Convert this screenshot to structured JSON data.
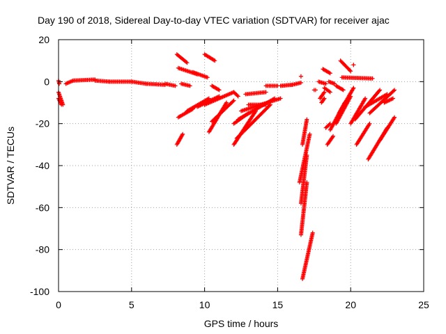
{
  "chart_data": {
    "type": "scatter",
    "title": "Day 190 of 2018, Sidereal Day-to-day VTEC variation (SDTVAR) for receiver ajac",
    "xlabel": "GPS time / hours",
    "ylabel": "SDTVAR / TECUs",
    "xlim": [
      0,
      25
    ],
    "ylim": [
      -100,
      20
    ],
    "xticks": [
      0,
      5,
      10,
      15,
      20,
      25
    ],
    "yticks": [
      -100,
      -80,
      -60,
      -40,
      -20,
      0,
      20
    ],
    "grid": true,
    "marker": "+",
    "color": "#ff0000",
    "segments": [
      {
        "x0": 0.0,
        "y0": 0.5,
        "x1": 0.05,
        "y1": -1
      },
      {
        "x0": 0.0,
        "y0": -5,
        "x1": 0.3,
        "y1": -11
      },
      {
        "x0": 0.0,
        "y0": -8,
        "x1": 0.2,
        "y1": -11
      },
      {
        "x0": 0.5,
        "y0": -1,
        "x1": 1.0,
        "y1": 0.5
      },
      {
        "x0": 1.0,
        "y0": 0.5,
        "x1": 2.5,
        "y1": 1.0
      },
      {
        "x0": 2.5,
        "y0": 0.5,
        "x1": 3.5,
        "y1": 0.0
      },
      {
        "x0": 3.5,
        "y0": 0.0,
        "x1": 5.0,
        "y1": 0.0
      },
      {
        "x0": 5.0,
        "y0": 0.0,
        "x1": 6.0,
        "y1": -1.0
      },
      {
        "x0": 6.0,
        "y0": -1.0,
        "x1": 7.3,
        "y1": -1.5
      },
      {
        "x0": 7.3,
        "y0": -1.0,
        "x1": 8.0,
        "y1": -2.0
      },
      {
        "x0": 8.1,
        "y0": 13,
        "x1": 8.8,
        "y1": 9
      },
      {
        "x0": 8.2,
        "y0": 6.5,
        "x1": 9.5,
        "y1": 3.5
      },
      {
        "x0": 9.2,
        "y0": 4.5,
        "x1": 10.2,
        "y1": 2
      },
      {
        "x0": 8.4,
        "y0": -1,
        "x1": 9.0,
        "y1": -2
      },
      {
        "x0": 8.1,
        "y0": -30,
        "x1": 8.5,
        "y1": -25
      },
      {
        "x0": 8.2,
        "y0": -17,
        "x1": 9.2,
        "y1": -13
      },
      {
        "x0": 8.8,
        "y0": -14,
        "x1": 10.3,
        "y1": -8
      },
      {
        "x0": 9.5,
        "y0": -12,
        "x1": 11.0,
        "y1": -7
      },
      {
        "x0": 10.0,
        "y0": -11,
        "x1": 12.0,
        "y1": -5
      },
      {
        "x0": 10.3,
        "y0": -24,
        "x1": 11.5,
        "y1": -10
      },
      {
        "x0": 10.5,
        "y0": -19,
        "x1": 12.0,
        "y1": -9
      },
      {
        "x0": 10.0,
        "y0": 13,
        "x1": 10.7,
        "y1": 10
      },
      {
        "x0": 10.5,
        "y0": -2,
        "x1": 11.0,
        "y1": -4
      },
      {
        "x0": 12.0,
        "y0": -30,
        "x1": 13.5,
        "y1": -14
      },
      {
        "x0": 12.2,
        "y0": -27,
        "x1": 14.5,
        "y1": -11
      },
      {
        "x0": 12.0,
        "y0": -20,
        "x1": 13.0,
        "y1": -15
      },
      {
        "x0": 12.3,
        "y0": -18,
        "x1": 14.8,
        "y1": -8
      },
      {
        "x0": 12.5,
        "y0": -14,
        "x1": 15.2,
        "y1": -8
      },
      {
        "x0": 12.0,
        "y0": -5,
        "x1": 12.3,
        "y1": -7
      },
      {
        "x0": 13.0,
        "y0": -11,
        "x1": 14.2,
        "y1": -11
      },
      {
        "x0": 12.8,
        "y0": -6,
        "x1": 14.2,
        "y1": -5
      },
      {
        "x0": 14.2,
        "y0": -2,
        "x1": 15.0,
        "y1": -2
      },
      {
        "x0": 15.2,
        "y0": -2,
        "x1": 16.0,
        "y1": -1.5
      },
      {
        "x0": 16.0,
        "y0": -1.5,
        "x1": 16.6,
        "y1": -0.5
      },
      {
        "x0": 16.6,
        "y0": 2.5,
        "x1": 16.6,
        "y1": 2.5
      },
      {
        "x0": 16.5,
        "y0": -48,
        "x1": 17.2,
        "y1": -25
      },
      {
        "x0": 16.6,
        "y0": -58,
        "x1": 17.0,
        "y1": -35
      },
      {
        "x0": 16.6,
        "y0": -73,
        "x1": 17.0,
        "y1": -48
      },
      {
        "x0": 16.7,
        "y0": -94,
        "x1": 17.4,
        "y1": -72
      },
      {
        "x0": 16.7,
        "y0": -30,
        "x1": 17.0,
        "y1": -18
      },
      {
        "x0": 17.5,
        "y0": -4,
        "x1": 17.6,
        "y1": -4
      },
      {
        "x0": 17.8,
        "y0": 0,
        "x1": 18.3,
        "y1": -1
      },
      {
        "x0": 17.9,
        "y0": -8,
        "x1": 18.2,
        "y1": -5
      },
      {
        "x0": 18.0,
        "y0": -10,
        "x1": 18.2,
        "y1": -8
      },
      {
        "x0": 18.1,
        "y0": 6,
        "x1": 18.6,
        "y1": 4
      },
      {
        "x0": 18.3,
        "y0": -22,
        "x1": 18.6,
        "y1": -20
      },
      {
        "x0": 18.2,
        "y0": -3,
        "x1": 18.6,
        "y1": -5
      },
      {
        "x0": 18.5,
        "y0": 0,
        "x1": 18.9,
        "y1": -1
      },
      {
        "x0": 18.4,
        "y0": -30,
        "x1": 18.8,
        "y1": -26
      },
      {
        "x0": 18.6,
        "y0": -23,
        "x1": 19.6,
        "y1": -10
      },
      {
        "x0": 19.0,
        "y0": -20,
        "x1": 20.0,
        "y1": -7
      },
      {
        "x0": 19.2,
        "y0": -15,
        "x1": 20.2,
        "y1": -3
      },
      {
        "x0": 19.3,
        "y0": 10,
        "x1": 20.0,
        "y1": 5
      },
      {
        "x0": 19.4,
        "y0": 2,
        "x1": 21.5,
        "y1": 1.5
      },
      {
        "x0": 19.0,
        "y0": -2,
        "x1": 19.5,
        "y1": -4
      },
      {
        "x0": 20.2,
        "y0": 8,
        "x1": 20.2,
        "y1": 8
      },
      {
        "x0": 20.0,
        "y0": -20,
        "x1": 21.0,
        "y1": -8
      },
      {
        "x0": 20.3,
        "y0": -18,
        "x1": 22.0,
        "y1": -4
      },
      {
        "x0": 20.4,
        "y0": -30,
        "x1": 21.3,
        "y1": -20
      },
      {
        "x0": 21.0,
        "y0": -12,
        "x1": 22.5,
        "y1": -6
      },
      {
        "x0": 21.2,
        "y0": -37,
        "x1": 22.5,
        "y1": -22
      },
      {
        "x0": 21.3,
        "y0": -15,
        "x1": 23.0,
        "y1": -4
      },
      {
        "x0": 22.0,
        "y0": -28,
        "x1": 23.0,
        "y1": -17
      },
      {
        "x0": 22.3,
        "y0": -10,
        "x1": 22.9,
        "y1": -8
      }
    ]
  }
}
